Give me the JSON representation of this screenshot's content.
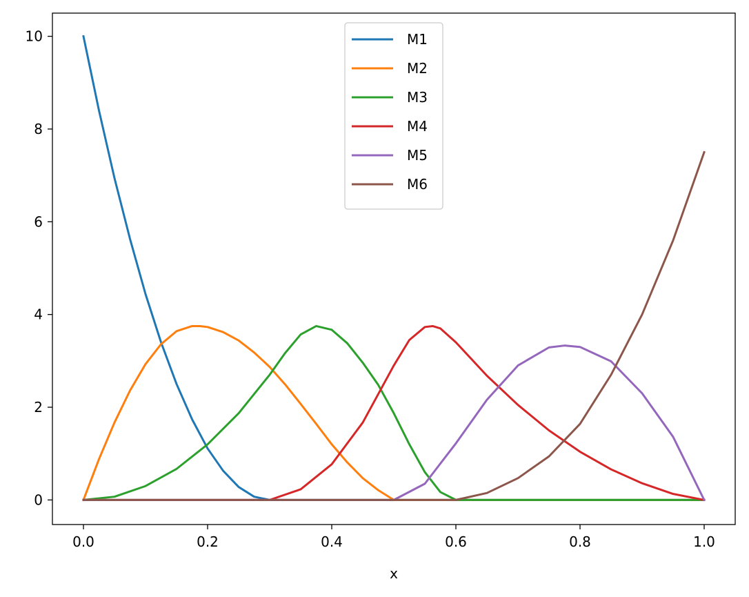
{
  "chart_data": {
    "type": "line",
    "title": "",
    "xlabel": "x",
    "ylabel": "",
    "xlim": [
      -0.05,
      1.05
    ],
    "ylim": [
      -0.53,
      10.5
    ],
    "xticks": [
      0.0,
      0.2,
      0.4,
      0.6,
      0.8,
      1.0
    ],
    "xtick_labels": [
      "0.0",
      "0.2",
      "0.4",
      "0.6",
      "0.8",
      "1.0"
    ],
    "yticks": [
      0,
      2,
      4,
      6,
      8,
      10
    ],
    "ytick_labels": [
      "0",
      "2",
      "4",
      "6",
      "8",
      "10"
    ],
    "grid": false,
    "legend_position": "top-center",
    "series": [
      {
        "name": "M1",
        "color": "#1f77b4",
        "x": [
          0,
          0.025,
          0.05,
          0.075,
          0.1,
          0.125,
          0.15,
          0.175,
          0.2,
          0.225,
          0.25,
          0.275,
          0.3,
          0.4,
          0.6,
          0.8,
          1.0
        ],
        "y": [
          10.0,
          8.4,
          6.94,
          5.63,
          4.44,
          3.4,
          2.5,
          1.74,
          1.11,
          0.63,
          0.28,
          0.07,
          0,
          0,
          0,
          0,
          0
        ]
      },
      {
        "name": "M2",
        "color": "#ff7f0e",
        "x": [
          0,
          0.025,
          0.05,
          0.075,
          0.1,
          0.125,
          0.15,
          0.175,
          0.1875,
          0.2,
          0.225,
          0.25,
          0.275,
          0.3,
          0.325,
          0.35,
          0.375,
          0.4,
          0.425,
          0.45,
          0.475,
          0.5,
          0.6,
          0.8,
          1.0
        ],
        "y": [
          0,
          0.88,
          1.67,
          2.36,
          2.93,
          3.36,
          3.64,
          3.75,
          3.75,
          3.73,
          3.62,
          3.44,
          3.18,
          2.87,
          2.49,
          2.07,
          1.64,
          1.2,
          0.81,
          0.47,
          0.21,
          0,
          0,
          0,
          0
        ]
      },
      {
        "name": "M3",
        "color": "#2ca02c",
        "x": [
          0,
          0.05,
          0.1,
          0.15,
          0.2,
          0.25,
          0.3,
          0.325,
          0.35,
          0.375,
          0.4,
          0.425,
          0.45,
          0.475,
          0.5,
          0.525,
          0.55,
          0.575,
          0.6,
          0.8,
          1.0
        ],
        "y": [
          0,
          0.07,
          0.3,
          0.67,
          1.2,
          1.87,
          2.7,
          3.17,
          3.57,
          3.75,
          3.67,
          3.38,
          2.96,
          2.48,
          1.87,
          1.2,
          0.6,
          0.17,
          0,
          0,
          0
        ]
      },
      {
        "name": "M4",
        "color": "#d62728",
        "x": [
          0,
          0.3,
          0.35,
          0.4,
          0.45,
          0.5,
          0.525,
          0.55,
          0.5625,
          0.575,
          0.6,
          0.65,
          0.7,
          0.75,
          0.8,
          0.85,
          0.9,
          0.95,
          1.0
        ],
        "y": [
          0,
          0,
          0.23,
          0.77,
          1.67,
          2.9,
          3.45,
          3.73,
          3.75,
          3.7,
          3.4,
          2.68,
          2.05,
          1.5,
          1.04,
          0.66,
          0.36,
          0.13,
          0
        ]
      },
      {
        "name": "M5",
        "color": "#9467bd",
        "x": [
          0,
          0.5,
          0.55,
          0.6,
          0.65,
          0.7,
          0.75,
          0.775,
          0.8,
          0.85,
          0.9,
          0.95,
          1.0
        ],
        "y": [
          0,
          0,
          0.35,
          1.22,
          2.16,
          2.9,
          3.29,
          3.33,
          3.3,
          2.99,
          2.3,
          1.36,
          0
        ]
      },
      {
        "name": "M6",
        "color": "#8c564b",
        "x": [
          0,
          0.6,
          0.65,
          0.7,
          0.75,
          0.8,
          0.85,
          0.9,
          0.95,
          1.0
        ],
        "y": [
          0,
          0,
          0.15,
          0.47,
          0.94,
          1.64,
          2.7,
          4.0,
          5.6,
          7.5
        ]
      }
    ]
  }
}
